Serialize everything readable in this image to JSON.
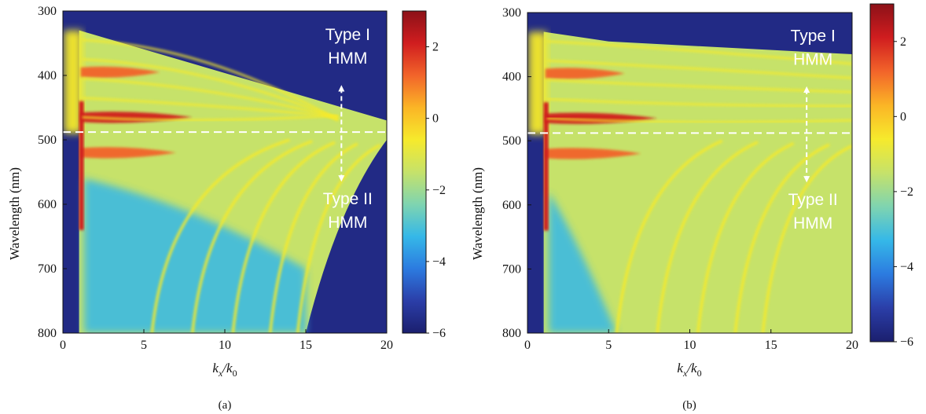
{
  "chart_data": [
    {
      "type": "heatmap",
      "panel_label": "(a)",
      "ylabel": "Wavelength (nm)",
      "xlabel_main": "k",
      "xlabel_sub": "x",
      "xlabel_den": "/k",
      "xlabel_den_sub": "0",
      "xlim": [
        0,
        20
      ],
      "ylim": [
        800,
        300
      ],
      "x_ticks": [
        0,
        5,
        10,
        15,
        20
      ],
      "y_ticks": [
        300,
        400,
        500,
        600,
        700,
        800
      ],
      "colorbar": {
        "range": [
          -6,
          3
        ],
        "ticks": [
          2,
          0,
          -2,
          -4,
          -6
        ],
        "tick_labels": [
          "2",
          "0",
          "−2",
          "−4",
          "−6"
        ]
      },
      "threshold_wavelength": 488,
      "annotations": [
        {
          "line1": "Type I",
          "line2": "HMM",
          "x": 17.2,
          "y": 345
        },
        {
          "line1": "Type II",
          "line2": "HMM",
          "x": 17.2,
          "y": 600
        }
      ],
      "mode_features": [
        {
          "name": "bright band",
          "x_range": [
            1,
            8
          ],
          "wavelength": 465
        },
        {
          "name": "bright band",
          "x_range": [
            1,
            6
          ],
          "wavelength": 395
        },
        {
          "name": "bright band",
          "x_range": [
            1,
            7
          ],
          "wavelength": 520
        }
      ]
    },
    {
      "type": "heatmap",
      "panel_label": "(b)",
      "ylabel": "Wavelength (nm)",
      "xlabel_main": "k",
      "xlabel_sub": "x",
      "xlabel_den": "/k",
      "xlabel_den_sub": "0",
      "xlim": [
        0,
        20
      ],
      "ylim": [
        800,
        300
      ],
      "x_ticks": [
        0,
        5,
        10,
        15,
        20
      ],
      "y_ticks": [
        300,
        400,
        500,
        600,
        700,
        800
      ],
      "colorbar": {
        "range": [
          -6,
          3
        ],
        "ticks": [
          2,
          0,
          -2,
          -4,
          -6
        ],
        "tick_labels": [
          "2",
          "0",
          "−2",
          "−4",
          "−6"
        ]
      },
      "threshold_wavelength": 488,
      "annotations": [
        {
          "line1": "Type I",
          "line2": "HMM",
          "x": 17.2,
          "y": 345
        },
        {
          "line1": "Type II",
          "line2": "HMM",
          "x": 17.2,
          "y": 600
        }
      ],
      "mode_features": [
        {
          "name": "bright band",
          "x_range": [
            1,
            8
          ],
          "wavelength": 465
        },
        {
          "name": "bright band",
          "x_range": [
            1,
            6
          ],
          "wavelength": 395
        },
        {
          "name": "bright band",
          "x_range": [
            1,
            7
          ],
          "wavelength": 520
        }
      ]
    }
  ],
  "colors": {
    "background_dark": "#222a85",
    "axis": "#111111",
    "dashed_line": "#ffffff",
    "annotation": "#ffffff",
    "colormap": [
      "#1b1f6e",
      "#2b3ea8",
      "#2c7be0",
      "#35b8e8",
      "#7fd4b0",
      "#c6e26a",
      "#f6ea2c",
      "#fbb526",
      "#f2642a",
      "#d01d1f",
      "#8c1118"
    ]
  }
}
